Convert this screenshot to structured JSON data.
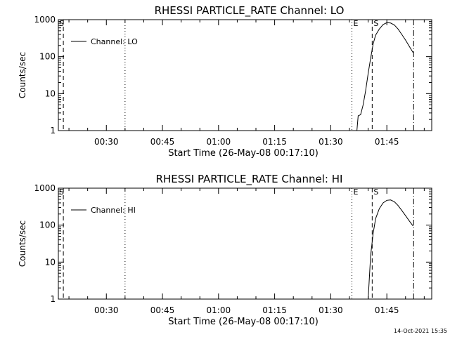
{
  "footer_timestamp": "14-Oct-2021 15:35",
  "chart_data": [
    {
      "type": "line",
      "title": "RHESSI PARTICLE_RATE Channel: LO",
      "xlabel": "Start Time (26-May-08 00:17:10)",
      "ylabel": "Counts/sec",
      "y_scale": "log",
      "xlim": [
        "00:17:10",
        "01:57:00"
      ],
      "ylim": [
        1,
        1000
      ],
      "x_ticks": [
        "00:30",
        "00:45",
        "01:00",
        "01:15",
        "01:30",
        "01:45"
      ],
      "y_ticks": [
        "1",
        "10",
        "100",
        "1000"
      ],
      "legend": {
        "position": "top-left",
        "entries": [
          "Channel: LO"
        ]
      },
      "series": [
        {
          "name": "Channel: LO",
          "x": [
            "01:37:00",
            "01:37:20",
            "01:38:00",
            "01:38:40",
            "01:39:20",
            "01:40:00",
            "01:40:40",
            "01:41:20",
            "01:42:00",
            "01:43:00",
            "01:44:00",
            "01:45:00",
            "01:46:00",
            "01:47:00",
            "01:48:00",
            "01:49:00",
            "01:50:00",
            "01:51:00",
            "01:52:00"
          ],
          "y": [
            1,
            2.5,
            2.7,
            5,
            12,
            35,
            90,
            220,
            380,
            560,
            740,
            830,
            810,
            720,
            560,
            400,
            280,
            190,
            130
          ]
        }
      ],
      "markers": [
        {
          "label": "E",
          "time": "01:35:40",
          "style": "dotted"
        },
        {
          "label": "S",
          "time": "01:41:05",
          "style": "dashed"
        },
        {
          "label": "",
          "time": "00:35:00",
          "style": "dotted"
        },
        {
          "label": "",
          "time": "01:52:10",
          "style": "dash-dot"
        },
        {
          "label": "",
          "time": "00:18:30",
          "style": "dashed"
        }
      ],
      "corner_label": "S"
    },
    {
      "type": "line",
      "title": "RHESSI PARTICLE_RATE Channel: HI",
      "xlabel": "Start Time (26-May-08 00:17:10)",
      "ylabel": "Counts/sec",
      "y_scale": "log",
      "xlim": [
        "00:17:10",
        "01:57:00"
      ],
      "ylim": [
        1,
        1000
      ],
      "x_ticks": [
        "00:30",
        "00:45",
        "01:00",
        "01:15",
        "01:30",
        "01:45"
      ],
      "y_ticks": [
        "1",
        "10",
        "100",
        "1000"
      ],
      "legend": {
        "position": "top-left",
        "entries": [
          "Channel: HI"
        ]
      },
      "series": [
        {
          "name": "Channel: HI",
          "x": [
            "01:40:00",
            "01:40:20",
            "01:40:40",
            "01:41:20",
            "01:42:00",
            "01:43:00",
            "01:44:00",
            "01:45:00",
            "01:46:00",
            "01:47:00",
            "01:48:00",
            "01:49:00",
            "01:50:00",
            "01:51:00",
            "01:52:00"
          ],
          "y": [
            1,
            4,
            15,
            60,
            150,
            280,
            400,
            470,
            480,
            430,
            340,
            250,
            180,
            130,
            95
          ]
        }
      ],
      "markers": [
        {
          "label": "E",
          "time": "01:35:40",
          "style": "dotted"
        },
        {
          "label": "S",
          "time": "01:41:05",
          "style": "dashed"
        },
        {
          "label": "",
          "time": "00:35:00",
          "style": "dotted"
        },
        {
          "label": "",
          "time": "01:52:10",
          "style": "dash-dot"
        },
        {
          "label": "",
          "time": "00:18:30",
          "style": "dashed"
        }
      ],
      "corner_label": "S"
    }
  ]
}
